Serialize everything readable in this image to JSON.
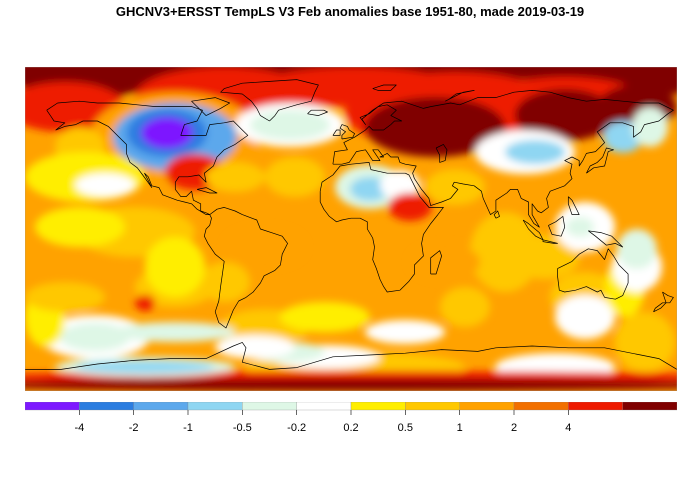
{
  "title": "GHCNV3+ERSST TempLS V3 Feb anomalies base 1951-80, made 2019-03-19",
  "legend": {
    "colors": [
      "#7d19ff",
      "#2b7de0",
      "#5ca8ec",
      "#8fd6f2",
      "#def7e6",
      "#ffffff",
      "#ffee00",
      "#ffc800",
      "#ffa200",
      "#f27000",
      "#ee1a00",
      "#800000"
    ],
    "tick_labels": [
      "-4",
      "-2",
      "-1",
      "-0.5",
      "-0.2",
      "0.2",
      "0.5",
      "1",
      "2",
      "4"
    ]
  },
  "map": {
    "background_color": "#ffa200",
    "coastline_color": "#000000",
    "projection": "equirectangular"
  }
}
